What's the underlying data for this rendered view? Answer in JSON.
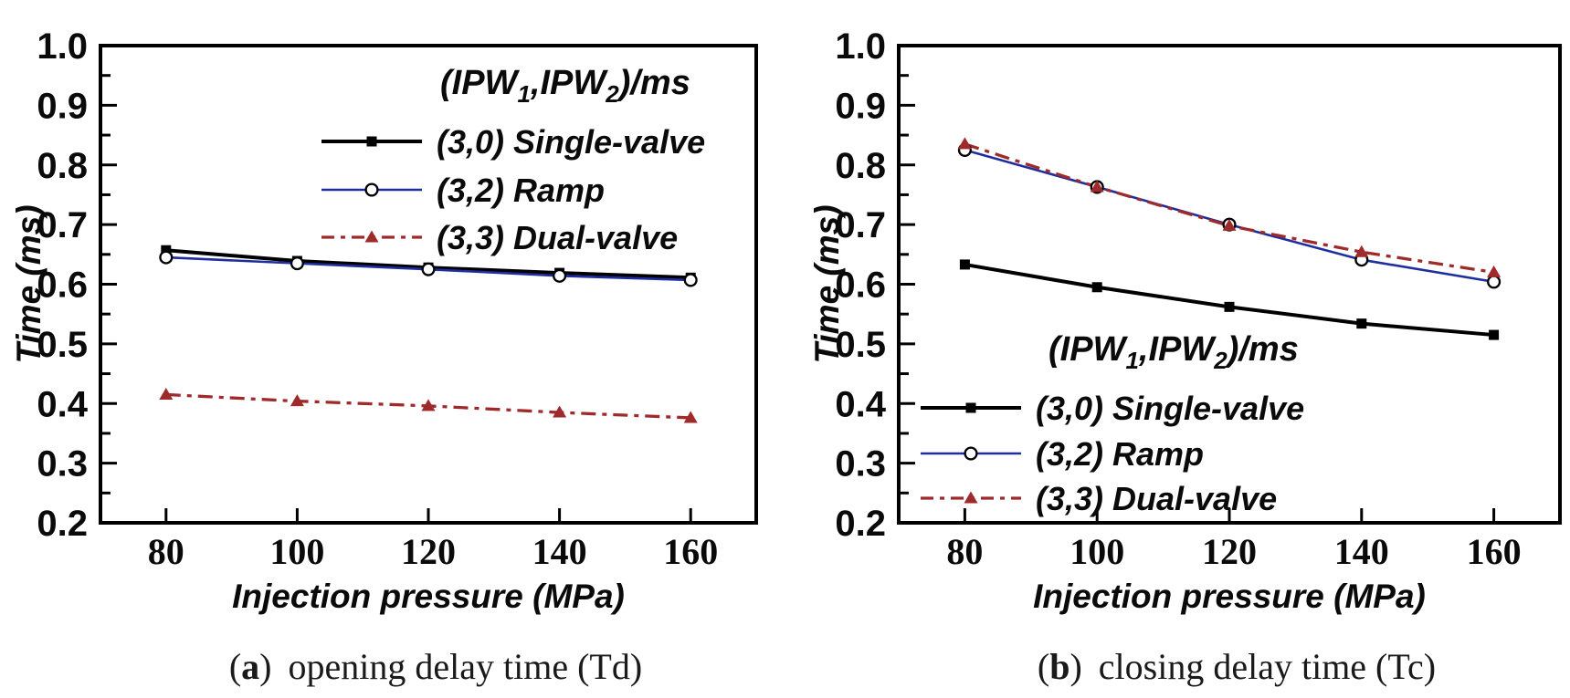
{
  "figure": {
    "background": "#ffffff",
    "frame_color": "#000000",
    "text_color": "#0a0a0a"
  },
  "chart_data": [
    {
      "type": "line",
      "panel": "a",
      "caption": {
        "open": "(",
        "label": "a",
        "close": ")",
        "text": "opening delay time (Td)"
      },
      "xlabel": "Injection pressure (MPa)",
      "ylabel": "Time (ms)",
      "x": [
        80,
        100,
        120,
        140,
        160
      ],
      "xlim": [
        70,
        170
      ],
      "ylim": [
        0.2,
        1.0
      ],
      "x_tick_labels": [
        "80",
        "100",
        "120",
        "140",
        "160"
      ],
      "y_tick_labels": [
        "0.2",
        "0.3",
        "0.4",
        "0.5",
        "0.6",
        "0.7",
        "0.8",
        "0.9",
        "1.0"
      ],
      "y_major_step": 0.1,
      "y_minor_step": 0.05,
      "grid": "off",
      "legend_position": "upper-right",
      "legend_title": {
        "prefix": "(IPW",
        "sub1": "1",
        "mid": ",IPW",
        "sub2": "2",
        "suffix": ")/ms"
      },
      "series": [
        {
          "name": "(3,0) Single-valve",
          "color": "#000000",
          "marker": "square",
          "line": "solid",
          "values": [
            0.657,
            0.639,
            0.628,
            0.619,
            0.611
          ]
        },
        {
          "name": "(3,2) Ramp",
          "color": "#1F2E9E",
          "marker": "circle-open",
          "line": "solid",
          "values": [
            0.645,
            0.635,
            0.625,
            0.614,
            0.607
          ]
        },
        {
          "name": "(3,3) Dual-valve",
          "color": "#9E2A2B",
          "marker": "triangle",
          "line": "dash-dot",
          "values": [
            0.415,
            0.404,
            0.396,
            0.385,
            0.376
          ]
        }
      ]
    },
    {
      "type": "line",
      "panel": "b",
      "caption": {
        "open": "(",
        "label": "b",
        "close": ")",
        "text": "closing delay time (Tc)"
      },
      "xlabel": "Injection pressure (MPa)",
      "ylabel": "Time (ms)",
      "x": [
        80,
        100,
        120,
        140,
        160
      ],
      "xlim": [
        70,
        170
      ],
      "ylim": [
        0.2,
        1.0
      ],
      "x_tick_labels": [
        "80",
        "100",
        "120",
        "140",
        "160"
      ],
      "y_tick_labels": [
        "0.2",
        "0.3",
        "0.4",
        "0.5",
        "0.6",
        "0.7",
        "0.8",
        "0.9",
        "1.0"
      ],
      "y_major_step": 0.1,
      "y_minor_step": 0.05,
      "grid": "off",
      "legend_position": "lower-left",
      "legend_title": {
        "prefix": "(IPW",
        "sub1": "1",
        "mid": ",IPW",
        "sub2": "2",
        "suffix": ")/ms"
      },
      "series": [
        {
          "name": "(3,0) Single-valve",
          "color": "#000000",
          "marker": "square",
          "line": "solid",
          "values": [
            0.633,
            0.595,
            0.562,
            0.534,
            0.515
          ]
        },
        {
          "name": "(3,2) Ramp",
          "color": "#1F2E9E",
          "marker": "circle-open",
          "line": "solid",
          "values": [
            0.825,
            0.763,
            0.7,
            0.641,
            0.604
          ]
        },
        {
          "name": "(3,3) Dual-valve",
          "color": "#9E2A2B",
          "marker": "triangle",
          "line": "dash-dot",
          "values": [
            0.835,
            0.763,
            0.698,
            0.654,
            0.62
          ]
        }
      ]
    }
  ]
}
